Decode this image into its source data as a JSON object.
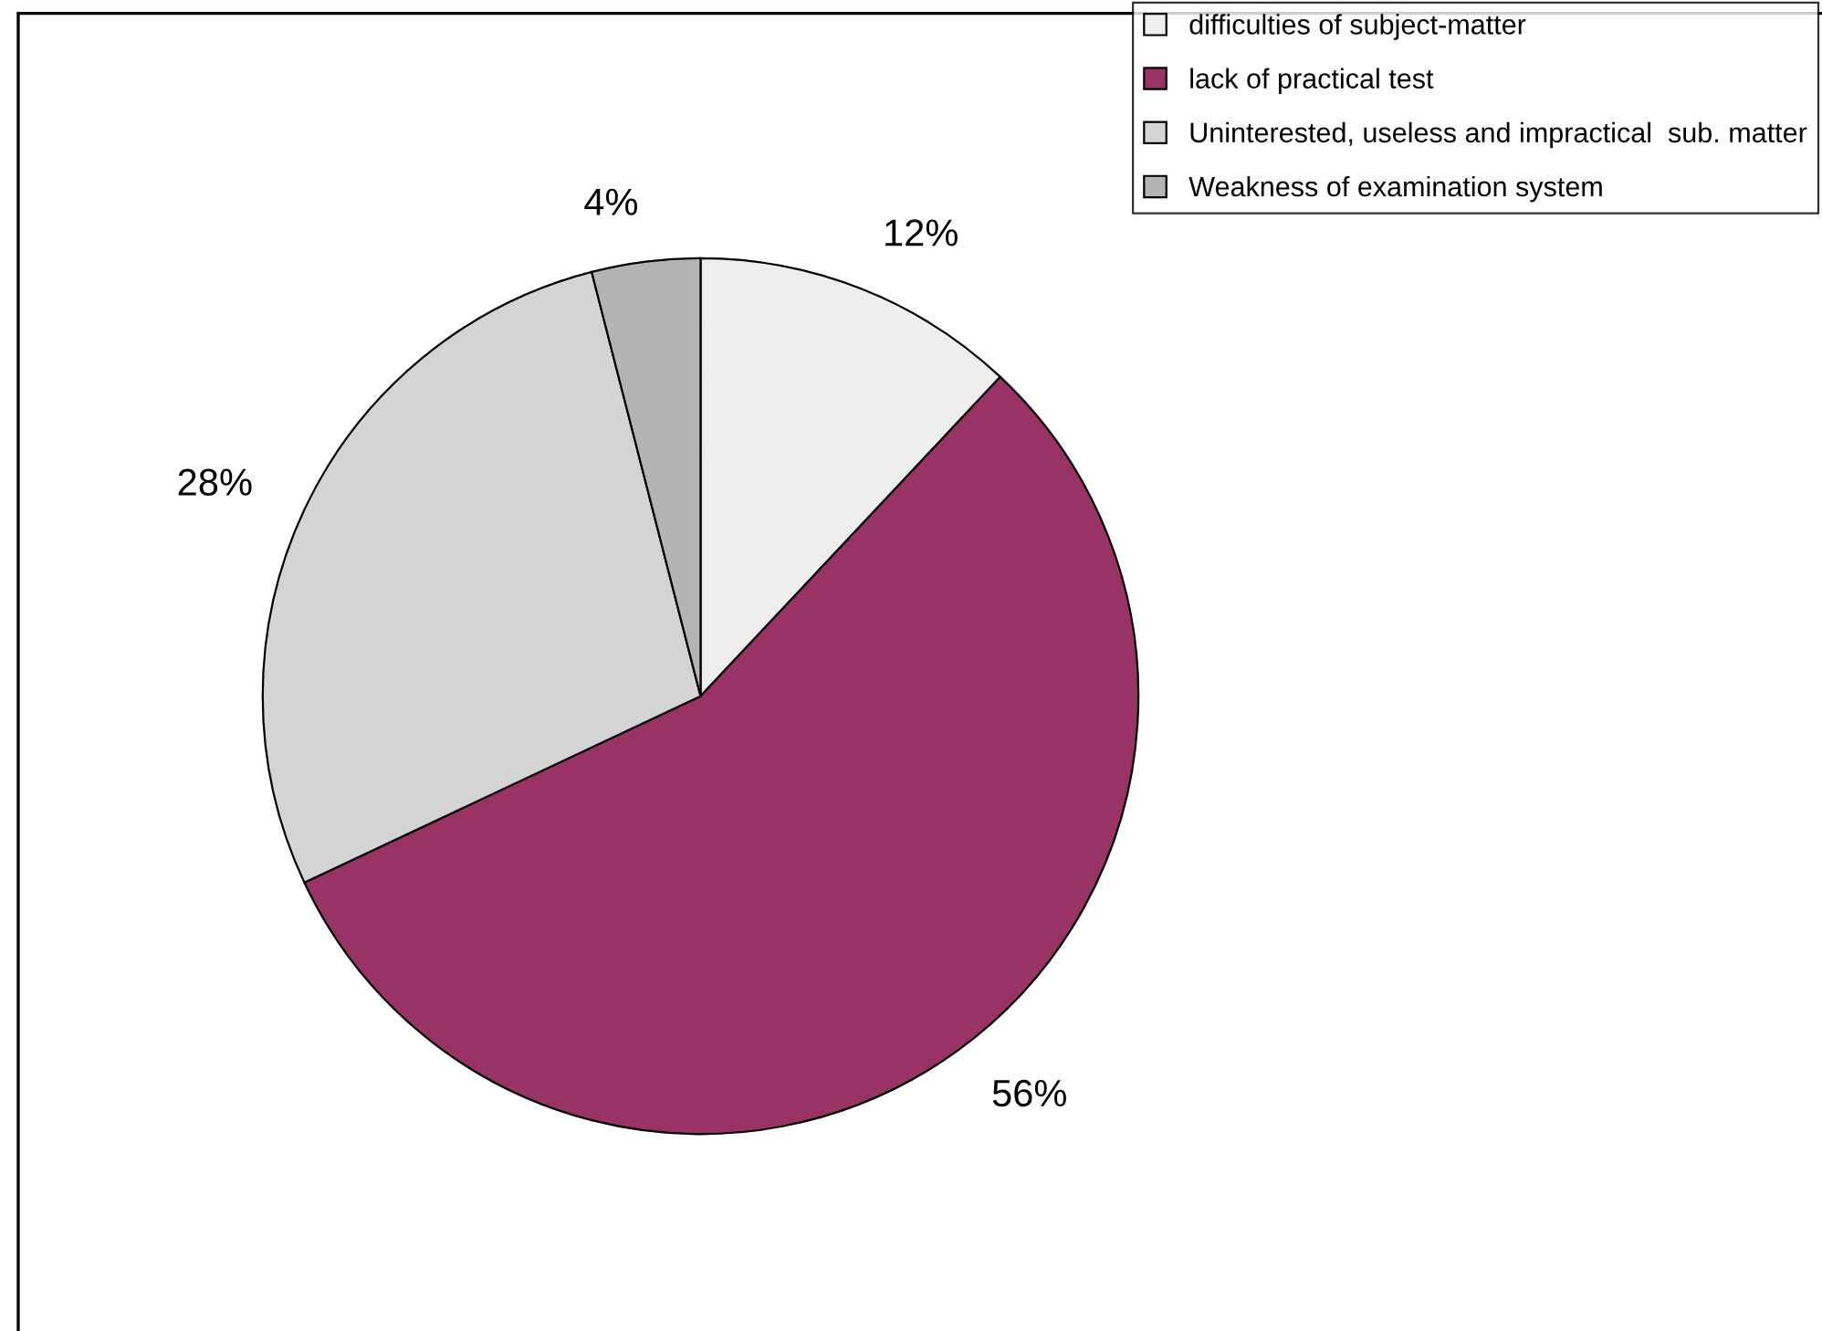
{
  "chart_data": {
    "type": "pie",
    "categories": [
      "difficulties of subject-matter",
      "lack of practical test",
      "Uninterested, useless and impractical  sub. matter",
      "Weakness of examination system"
    ],
    "values": [
      12,
      56,
      28,
      4
    ],
    "colors": [
      "#eeeeee",
      "#993366",
      "#d4d4d4",
      "#b4b4b4"
    ],
    "value_labels": [
      "12%",
      "56%",
      "28%",
      "4%"
    ],
    "legend": "top right"
  }
}
